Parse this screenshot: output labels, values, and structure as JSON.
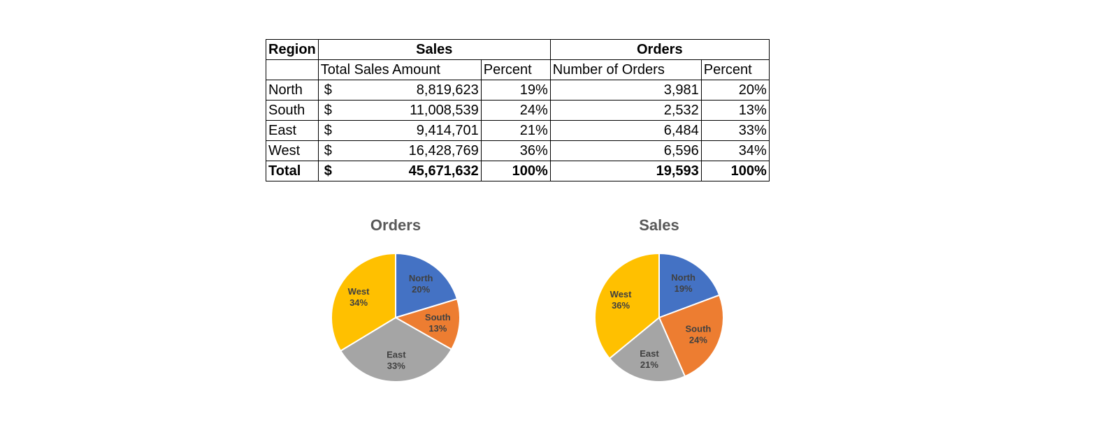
{
  "table": {
    "headers": {
      "region": "Region",
      "sales": "Sales",
      "orders": "Orders",
      "total_sales_amount": "Total Sales Amount",
      "sales_percent": "Percent",
      "number_of_orders": "Number of Orders",
      "orders_percent": "Percent"
    },
    "currency": "$",
    "rows": [
      {
        "region": "North",
        "sales": "8,819,623",
        "sales_pct": "19%",
        "orders": "3,981",
        "orders_pct": "20%"
      },
      {
        "region": "South",
        "sales": "11,008,539",
        "sales_pct": "24%",
        "orders": "2,532",
        "orders_pct": "13%"
      },
      {
        "region": "East",
        "sales": "9,414,701",
        "sales_pct": "21%",
        "orders": "6,484",
        "orders_pct": "33%"
      },
      {
        "region": "West",
        "sales": "16,428,769",
        "sales_pct": "36%",
        "orders": "6,596",
        "orders_pct": "34%"
      }
    ],
    "total": {
      "region": "Total",
      "sales": "45,671,632",
      "sales_pct": "100%",
      "orders": "19,593",
      "orders_pct": "100%"
    }
  },
  "colors": {
    "North": "#4472C4",
    "South": "#ED7D31",
    "East": "#A5A5A5",
    "West": "#FFC000"
  },
  "chart_data": [
    {
      "type": "pie",
      "title": "Orders",
      "categories": [
        "North",
        "South",
        "East",
        "West"
      ],
      "values": [
        3981,
        2532,
        6484,
        6596
      ],
      "labels": [
        "20%",
        "13%",
        "33%",
        "34%"
      ]
    },
    {
      "type": "pie",
      "title": "Sales",
      "categories": [
        "North",
        "South",
        "East",
        "West"
      ],
      "values": [
        8819623,
        11008539,
        9414701,
        16428769
      ],
      "labels": [
        "19%",
        "24%",
        "21%",
        "36%"
      ]
    }
  ]
}
